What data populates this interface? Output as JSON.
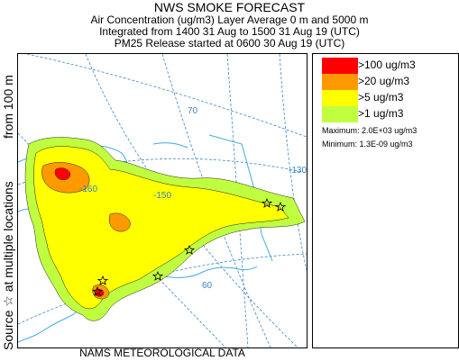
{
  "header": {
    "title": "NWS SMOKE FORECAST",
    "line2": "Air Concentration (ug/m3) Layer Average    0 m and  5000 m",
    "line3": "Integrated from 1400 31 Aug to 1500 31 Aug 19 (UTC)",
    "line4": "PM25 Release started at 0600 30 Aug 19 (UTC)"
  },
  "side_labels": {
    "source": "Source ☆ at multiple locations",
    "height": "from    100 m"
  },
  "map": {
    "grid_labels": [
      "70",
      "-160",
      "-150",
      "-130",
      "60"
    ],
    "colors": {
      "gt100": "#ff0000",
      "gt20": "#ff9900",
      "gt5": "#ffff00",
      "gt1": "#c0ff40",
      "coast": "#44aadd",
      "grid": "#3a86c8"
    }
  },
  "legend": {
    "items": [
      {
        "label": ">100 ug/m3",
        "color": "#ff0000"
      },
      {
        "label": ">20 ug/m3",
        "color": "#ff9900"
      },
      {
        "label": ">5 ug/m3",
        "color": "#ffff00"
      },
      {
        "label": ">1 ug/m3",
        "color": "#c0ff40"
      }
    ],
    "maximum": "Maximum: 2.0E+03 ug/m3",
    "minimum": "Minimum: 1.3E-09 ug/m3"
  },
  "footer": {
    "text": "NAMS METEOROLOGICAL DATA"
  }
}
